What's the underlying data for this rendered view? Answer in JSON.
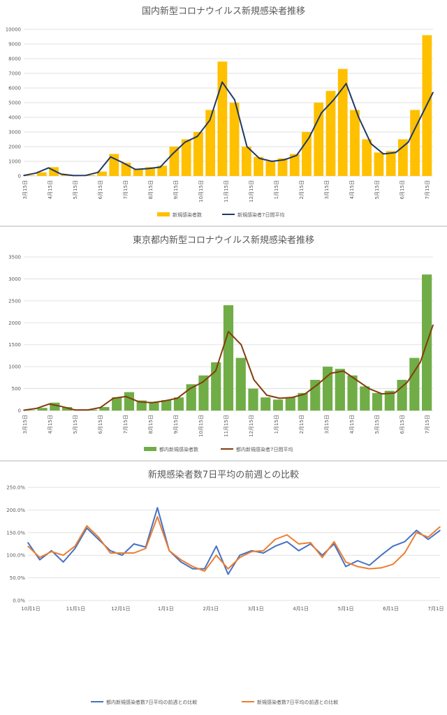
{
  "chart_data": [
    {
      "type": "bar+line",
      "title": "国内新型コロナウイルス新規感染者推移",
      "xlabel": "",
      "ylabel": "",
      "ylim": [
        0,
        10000
      ],
      "yticks": [
        "0",
        "1000",
        "2000",
        "3000",
        "4000",
        "5000",
        "6000",
        "7000",
        "8000",
        "9000",
        "10000"
      ],
      "x_ticks": [
        "3月15日",
        "4月15日",
        "5月15日",
        "6月15日",
        "7月15日",
        "8月15日",
        "9月15日",
        "10月15日",
        "11月15日",
        "12月15日",
        "1月15日",
        "2月15日",
        "3月15日",
        "4月15日",
        "5月15日",
        "6月15日",
        "7月15日"
      ],
      "series": [
        {
          "name": "新規感染者数",
          "kind": "bar",
          "color": "#FFC000",
          "values": [
            40,
            250,
            600,
            100,
            20,
            50,
            300,
            1500,
            900,
            500,
            600,
            700,
            2000,
            2500,
            3000,
            4500,
            7800,
            5000,
            2000,
            1300,
            1000,
            1200,
            1500,
            3000,
            5000,
            5800,
            7300,
            4500,
            2500,
            1600,
            1700,
            2500,
            4500,
            9600
          ]
        },
        {
          "name": "新規感染者7日間平均",
          "kind": "line",
          "color": "#203864",
          "values": [
            30,
            200,
            550,
            130,
            30,
            40,
            250,
            1300,
            900,
            450,
            500,
            600,
            1500,
            2300,
            2700,
            3800,
            6400,
            5200,
            2000,
            1200,
            1000,
            1100,
            1400,
            2600,
            4300,
            5200,
            6300,
            4000,
            2200,
            1500,
            1600,
            2300,
            4000,
            5700
          ]
        }
      ]
    },
    {
      "type": "bar+line",
      "title": "東京都内新型コロナウイルス新規感染者推移",
      "xlabel": "",
      "ylabel": "",
      "ylim": [
        0,
        3500
      ],
      "yticks": [
        "0",
        "500",
        "1000",
        "1500",
        "2000",
        "2500",
        "3000",
        "3500"
      ],
      "x_ticks": [
        "3月15日",
        "4月15日",
        "5月15日",
        "6月15日",
        "7月15日",
        "8月15日",
        "9月15日",
        "10月15日",
        "11月15日",
        "12月15日",
        "1月15日",
        "2月15日",
        "3月15日",
        "4月15日",
        "5月15日",
        "6月15日",
        "7月15日"
      ],
      "series": [
        {
          "name": "都内新規感染者数",
          "kind": "bar",
          "color": "#70AD47",
          "values": [
            10,
            60,
            180,
            80,
            10,
            20,
            80,
            300,
            420,
            230,
            200,
            240,
            300,
            600,
            800,
            1100,
            2400,
            1200,
            500,
            300,
            250,
            300,
            400,
            700,
            1000,
            950,
            800,
            550,
            400,
            450,
            700,
            1200,
            3100
          ]
        },
        {
          "name": "都内新規感染者7日間平均",
          "kind": "line",
          "color": "#843C0C",
          "values": [
            8,
            50,
            150,
            90,
            15,
            15,
            70,
            280,
            320,
            200,
            180,
            220,
            280,
            500,
            650,
            900,
            1800,
            1500,
            700,
            350,
            280,
            300,
            380,
            600,
            850,
            900,
            700,
            500,
            380,
            400,
            650,
            1100,
            1950
          ]
        }
      ]
    },
    {
      "type": "line",
      "title": "新規感染者数7日平均の前週との比較",
      "xlabel": "",
      "ylabel": "",
      "ylim": [
        0,
        250
      ],
      "yticks": [
        "0.0%",
        "50.0%",
        "100.0%",
        "150.0%",
        "200.0%",
        "250.0%"
      ],
      "x_ticks": [
        "10月1日",
        "11月1日",
        "12月1日",
        "1月1日",
        "2月1日",
        "3月1日",
        "4月1日",
        "5月1日",
        "6月1日",
        "7月1日"
      ],
      "series": [
        {
          "name": "都内新規感染者数7日平均の前週との比較",
          "kind": "line",
          "color": "#4472C4",
          "values": [
            128,
            90,
            110,
            85,
            115,
            160,
            135,
            110,
            100,
            125,
            118,
            205,
            110,
            85,
            70,
            70,
            120,
            58,
            100,
            110,
            105,
            120,
            130,
            110,
            125,
            100,
            125,
            75,
            88,
            78,
            100,
            120,
            130,
            155,
            135,
            155
          ]
        },
        {
          "name": "新規感染者数7日平均の前週との比較",
          "kind": "line",
          "color": "#ED7D31",
          "values": [
            120,
            95,
            108,
            100,
            120,
            165,
            140,
            105,
            105,
            105,
            115,
            185,
            110,
            90,
            75,
            65,
            100,
            70,
            95,
            108,
            110,
            135,
            145,
            125,
            128,
            95,
            130,
            85,
            75,
            70,
            72,
            80,
            105,
            150,
            140,
            163
          ]
        }
      ]
    }
  ]
}
